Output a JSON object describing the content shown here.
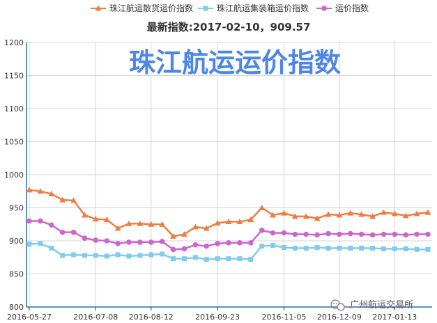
{
  "chart_data": {
    "type": "line",
    "title": "珠江航运运价指数",
    "subtitle": "最新指数:2017-02-10，909.57",
    "credit": "广州航运交易所",
    "legend_position": "top-center",
    "grid": true,
    "xlabel": "",
    "ylabel": "",
    "ylim": [
      800,
      1200
    ],
    "yticks": [
      "800",
      "850",
      "900",
      "950",
      "1000",
      "1050",
      "1100",
      "1150",
      "1200"
    ],
    "xticks": [
      "2016-05-27",
      "2016-07-08",
      "2016-08-12",
      "2016-09-23",
      "2016-11-05",
      "2016-12-09",
      "2017-01-13"
    ],
    "xtick_positions": [
      0,
      6,
      11,
      17,
      23,
      28,
      33
    ],
    "x_count": 37,
    "series": [
      {
        "name": "珠江航运散货运价指数",
        "color": "#ed7d42",
        "marker": "triangle",
        "values": [
          977,
          975,
          971,
          962,
          961,
          939,
          933,
          932,
          919,
          926,
          926,
          925,
          925,
          907,
          910,
          921,
          919,
          927,
          929,
          929,
          932,
          950,
          939,
          942,
          937,
          937,
          934,
          940,
          939,
          942,
          940,
          937,
          943,
          941,
          938,
          941,
          943
        ]
      },
      {
        "name": "珠江航运集装箱运价指数",
        "color": "#80ccee",
        "marker": "square",
        "values": [
          895,
          896,
          889,
          878,
          879,
          878,
          878,
          877,
          879,
          877,
          878,
          879,
          880,
          873,
          873,
          875,
          872,
          873,
          873,
          873,
          872,
          892,
          893,
          890,
          889,
          889,
          890,
          889,
          889,
          889,
          889,
          889,
          888,
          888,
          888,
          887,
          887
        ]
      },
      {
        "name": "运价指数",
        "color": "#cc66cc",
        "marker": "circle",
        "values": [
          930,
          930,
          924,
          913,
          913,
          904,
          901,
          900,
          896,
          898,
          898,
          898,
          899,
          887,
          888,
          894,
          892,
          896,
          897,
          897,
          897,
          916,
          912,
          912,
          910,
          910,
          909,
          911,
          910,
          911,
          910,
          909,
          910,
          910,
          909,
          910,
          910
        ]
      }
    ]
  }
}
